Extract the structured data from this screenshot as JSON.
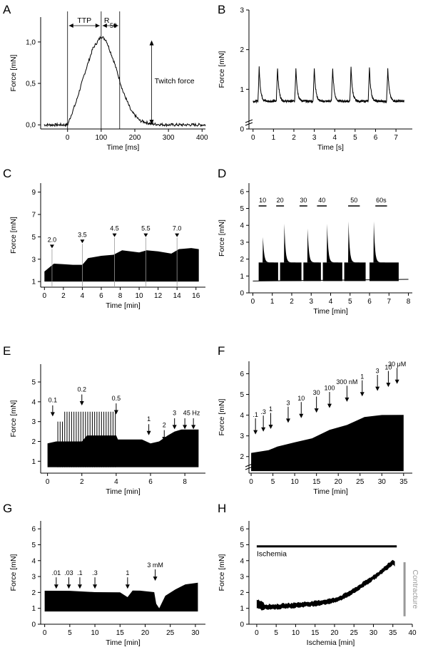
{
  "chart_data": [
    {
      "panel": "A",
      "type": "line",
      "xlabel": "Time [ms]",
      "ylabel": "Force [mN]",
      "xticks": [
        "0",
        "100",
        "200",
        "300",
        "400"
      ],
      "xlim": [
        -80,
        410
      ],
      "yticks": [
        "0,0",
        "0,5",
        "1,0"
      ],
      "ylim": [
        -0.05,
        1.3
      ],
      "annotations": {
        "ttp": "TTP",
        "r50_main": "R",
        "r50_sub": "50",
        "twitch": "Twitch force"
      },
      "series": [
        {
          "x": [
            -70,
            0,
            25,
            50,
            75,
            100,
            115,
            140,
            165,
            190,
            215,
            250,
            300,
            350,
            410
          ],
          "y": [
            0,
            0,
            0.27,
            0.61,
            0.92,
            1.07,
            1.02,
            0.74,
            0.4,
            0.16,
            0.05,
            0.01,
            0,
            0,
            0
          ]
        }
      ]
    },
    {
      "panel": "B",
      "type": "line",
      "xlabel": "Time [s]",
      "ylabel": "Force [mN]",
      "xticks": [
        "0",
        "1",
        "2",
        "3",
        "4",
        "5",
        "6",
        "7"
      ],
      "xlim": [
        -0.2,
        7.8
      ],
      "yticks": [
        "0",
        "1",
        "2",
        "3"
      ],
      "ylim": [
        0,
        3
      ],
      "baseline": 0.7,
      "peak": 1.55,
      "twitch_times": [
        0.3,
        1.2,
        2.1,
        3.0,
        3.9,
        4.8,
        5.7,
        6.6
      ]
    },
    {
      "panel": "C",
      "type": "area",
      "xlabel": "Time [min]",
      "ylabel": "Force [mN]",
      "xticks": [
        "0",
        "2",
        "4",
        "6",
        "8",
        "10",
        "12",
        "14",
        "16"
      ],
      "xlim": [
        -0.4,
        17
      ],
      "yticks": [
        "1",
        "3",
        "5",
        "7",
        "9"
      ],
      "ylim": [
        0.5,
        9.8
      ],
      "markers": [
        {
          "x": 0.8,
          "label": "2.0"
        },
        {
          "x": 4.0,
          "label": "3.5"
        },
        {
          "x": 7.4,
          "label": "4.5"
        },
        {
          "x": 10.7,
          "label": "5.5"
        },
        {
          "x": 14.0,
          "label": "7.0"
        }
      ],
      "lower": 1.0,
      "upper": {
        "x": [
          0,
          1,
          2,
          3,
          4,
          4.6,
          6,
          7.3,
          8.2,
          10,
          10.8,
          12,
          13.4,
          14.2,
          15.5,
          16.3
        ],
        "y": [
          1.9,
          2.6,
          2.55,
          2.5,
          2.5,
          3.1,
          3.3,
          3.4,
          3.8,
          3.6,
          3.8,
          3.7,
          3.5,
          3.9,
          4.0,
          3.9
        ]
      }
    },
    {
      "panel": "D",
      "type": "area",
      "xlabel": "Time [min]",
      "ylabel": "Force [mN]",
      "xticks": [
        "0",
        "1",
        "2",
        "3",
        "4",
        "5",
        "6",
        "7",
        "8"
      ],
      "xlim": [
        -0.2,
        8.2
      ],
      "yticks": [
        "0",
        "1",
        "2",
        "3",
        "4",
        "5",
        "6"
      ],
      "ylim": [
        0,
        6.5
      ],
      "bars": [
        {
          "start": 0.3,
          "end": 0.7,
          "label": "10"
        },
        {
          "start": 1.2,
          "end": 1.6,
          "label": "20"
        },
        {
          "start": 2.4,
          "end": 2.8,
          "label": "30"
        },
        {
          "start": 3.3,
          "end": 3.8,
          "label": "40"
        },
        {
          "start": 4.9,
          "end": 5.5,
          "label": "50"
        },
        {
          "start": 6.3,
          "end": 6.9,
          "label": "60s"
        }
      ],
      "blocks": [
        {
          "start": 0.3,
          "end": 1.3,
          "peak": 3.9
        },
        {
          "start": 1.4,
          "end": 2.5,
          "peak": 5.0
        },
        {
          "start": 2.6,
          "end": 3.5,
          "peak": 4.6
        },
        {
          "start": 3.6,
          "end": 4.6,
          "peak": 5.0
        },
        {
          "start": 4.7,
          "end": 5.8,
          "peak": 5.2
        },
        {
          "start": 6.0,
          "end": 7.5,
          "peak": 5.2
        }
      ],
      "base": 0.7,
      "level": 1.8
    },
    {
      "panel": "E",
      "type": "area",
      "xlabel": "Time [min]",
      "ylabel": "Force [mN]",
      "xticks": [
        "0",
        "2",
        "4",
        "6",
        "8"
      ],
      "xlim": [
        -0.4,
        9.2
      ],
      "yticks": [
        "1",
        "2",
        "3",
        "4",
        "5"
      ],
      "ylim": [
        0.4,
        5.9
      ],
      "markers": [
        {
          "x": 0.3,
          "label": "0.1"
        },
        {
          "x": 2.0,
          "label": "0.2"
        },
        {
          "x": 4.0,
          "label": "0.5"
        },
        {
          "x": 5.9,
          "label": "1"
        },
        {
          "x": 6.8,
          "label": "2"
        },
        {
          "x": 7.4,
          "label": "3"
        },
        {
          "x": 8.0,
          "label": "4"
        },
        {
          "x": 8.5,
          "label": "5 Hz"
        }
      ],
      "base": 0.7,
      "upper": {
        "x": [
          0,
          0.5,
          1.0,
          2.0,
          2.3,
          3.0,
          4.0,
          4.1,
          5.0,
          5.5,
          6.0,
          6.5,
          7.0,
          7.4,
          7.8,
          8.8
        ],
        "y": [
          1.9,
          2.0,
          2.0,
          2.0,
          2.3,
          2.3,
          2.3,
          2.1,
          2.1,
          2.1,
          1.9,
          2.0,
          2.3,
          2.5,
          2.6,
          2.6
        ]
      },
      "spikes": {
        "start": 0.6,
        "end": 3.95,
        "count": 26,
        "peak": 3.5
      }
    },
    {
      "panel": "F",
      "type": "area",
      "xlabel": "Time [min]",
      "ylabel": "Force [mN]",
      "xticks": [
        "0",
        "5",
        "10",
        "15",
        "20",
        "25",
        "30",
        "35"
      ],
      "xlim": [
        -0.5,
        37
      ],
      "yticks": [
        "2",
        "3",
        "4",
        "5",
        "6"
      ],
      "ylim": [
        1.2,
        6.6
      ],
      "markers": [
        {
          "x": 1.0,
          "label": ".1"
        },
        {
          "x": 2.8,
          "label": ".3"
        },
        {
          "x": 4.5,
          "label": "1"
        },
        {
          "x": 8.5,
          "label": "3"
        },
        {
          "x": 11.5,
          "label": "10"
        },
        {
          "x": 15.0,
          "label": "30"
        },
        {
          "x": 18.0,
          "label": "100"
        },
        {
          "x": 22.0,
          "label": "300 nM"
        },
        {
          "x": 25.5,
          "label": "1"
        },
        {
          "x": 29.0,
          "label": "3"
        },
        {
          "x": 31.5,
          "label": "10"
        },
        {
          "x": 33.5,
          "label": "30 μM"
        }
      ],
      "base": 1.3,
      "upper": {
        "x": [
          0,
          4,
          6,
          10,
          14,
          18,
          22,
          26,
          30,
          35
        ],
        "y": [
          2.2,
          2.3,
          2.5,
          2.7,
          2.9,
          3.3,
          3.5,
          3.9,
          4.0,
          4.0
        ]
      }
    },
    {
      "panel": "G",
      "type": "area",
      "xlabel": "Time [min]",
      "ylabel": "Force [mN]",
      "xticks": [
        "0",
        "5",
        "10",
        "15",
        "20",
        "25",
        "30"
      ],
      "xlim": [
        -0.8,
        32
      ],
      "yticks": [
        "0",
        "1",
        "2",
        "3",
        "4",
        "5",
        "6"
      ],
      "ylim": [
        0,
        6.5
      ],
      "markers": [
        {
          "x": 2.3,
          "label": ".01"
        },
        {
          "x": 4.8,
          "label": ".03"
        },
        {
          "x": 7.0,
          "label": ".1"
        },
        {
          "x": 10.0,
          "label": ".3"
        },
        {
          "x": 16.5,
          "label": "1"
        },
        {
          "x": 22.0,
          "label": "3 mM"
        }
      ],
      "base": 0.8,
      "upper": {
        "x": [
          0,
          5,
          10,
          15,
          16.5,
          17.5,
          19,
          21.8,
          22.2,
          22.8,
          24,
          26,
          28,
          30.5
        ],
        "y": [
          2.1,
          2.1,
          2.0,
          2.0,
          1.7,
          2.1,
          2.1,
          2.0,
          1.3,
          1.0,
          1.8,
          2.2,
          2.5,
          2.6
        ]
      }
    },
    {
      "panel": "H",
      "type": "line",
      "xlabel": "Ischemia [min]",
      "ylabel": "Force [mN]",
      "xticks": [
        "0",
        "5",
        "10",
        "15",
        "20",
        "25",
        "30",
        "35",
        "40"
      ],
      "xlim": [
        -2,
        40
      ],
      "yticks": [
        "0",
        "1",
        "2",
        "3",
        "4",
        "5",
        "6"
      ],
      "ylim": [
        0,
        6.5
      ],
      "bar_label": "Ischemia",
      "bar": {
        "start": 0,
        "end": 36,
        "y": 4.9
      },
      "side_label": "Contracture",
      "series": [
        {
          "x": [
            0,
            2,
            5,
            10,
            15,
            20,
            22,
            25,
            28,
            31,
            34,
            35,
            35.7
          ],
          "y": [
            1.3,
            1.1,
            1.1,
            1.2,
            1.3,
            1.5,
            1.7,
            2.1,
            2.6,
            3.1,
            3.7,
            3.9,
            3.8
          ]
        }
      ],
      "band_width": 0.3
    }
  ]
}
